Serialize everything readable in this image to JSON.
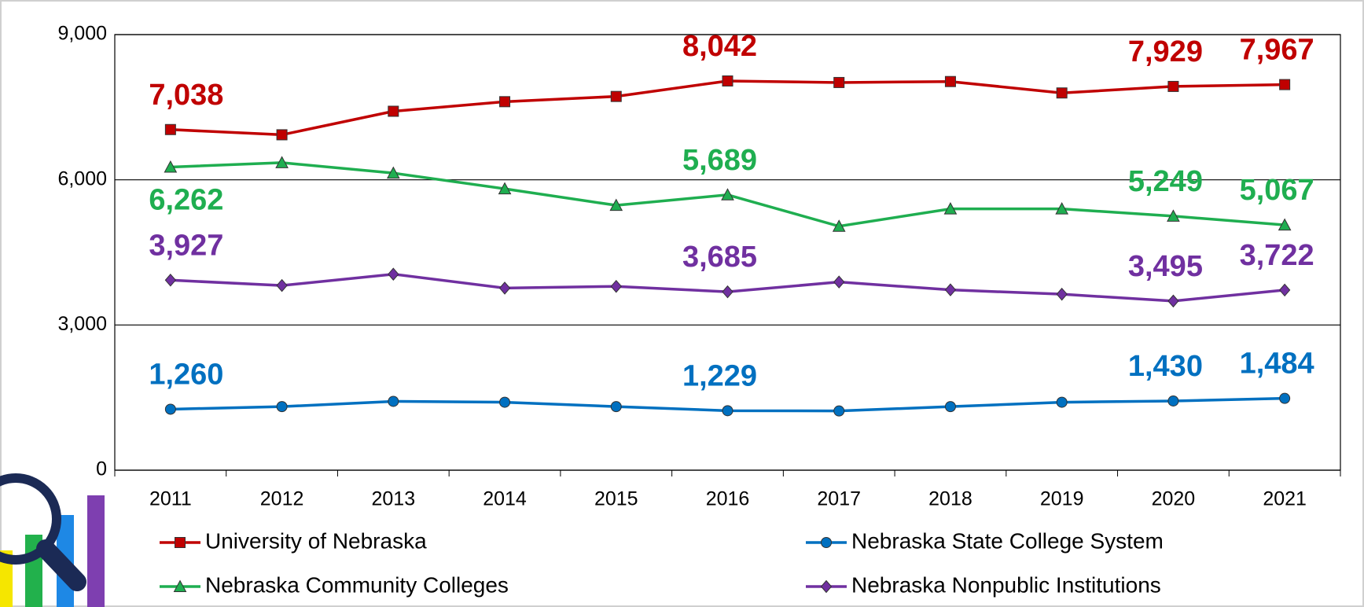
{
  "chart_data": {
    "type": "line",
    "categories": [
      "2011",
      "2012",
      "2013",
      "2014",
      "2015",
      "2016",
      "2017",
      "2018",
      "2019",
      "2020",
      "2021"
    ],
    "series": [
      {
        "name": "University of Nebraska",
        "color": "#c00000",
        "marker": "square",
        "values": [
          7038,
          6930,
          7416,
          7614,
          7722,
          8042,
          8010,
          8030,
          7794,
          7929,
          7967
        ],
        "value_labels": [
          "7,038",
          null,
          null,
          null,
          null,
          "8,042",
          null,
          null,
          null,
          "7,929",
          "7,967"
        ]
      },
      {
        "name": "Nebraska State College System",
        "color": "#0070c0",
        "marker": "circle",
        "values": [
          1260,
          1314,
          1422,
          1404,
          1314,
          1229,
          1224,
          1314,
          1404,
          1430,
          1484
        ],
        "value_labels": [
          "1,260",
          null,
          null,
          null,
          null,
          "1,229",
          null,
          null,
          null,
          "1,430",
          "1,484"
        ]
      },
      {
        "name": "Nebraska Community Colleges",
        "color": "#1fae50",
        "marker": "triangle",
        "values": [
          6262,
          6354,
          6138,
          5814,
          5472,
          5689,
          5040,
          5400,
          5400,
          5249,
          5067
        ],
        "value_labels": [
          "6,262",
          null,
          null,
          null,
          null,
          "5,689",
          null,
          null,
          null,
          "5,249",
          "5,067"
        ]
      },
      {
        "name": "Nebraska Nonpublic Institutions",
        "color": "#7030a0",
        "marker": "diamond",
        "values": [
          3927,
          3816,
          4050,
          3762,
          3798,
          3685,
          3888,
          3726,
          3636,
          3495,
          3722
        ],
        "value_labels": [
          "3,927",
          null,
          null,
          null,
          null,
          "3,685",
          null,
          null,
          null,
          "3,495",
          "3,722"
        ]
      }
    ],
    "ylim": [
      0,
      9000
    ],
    "yticks": [
      {
        "value": 0,
        "label": "0"
      },
      {
        "value": 3000,
        "label": "3,000"
      },
      {
        "value": 6000,
        "label": "6,000"
      },
      {
        "value": 9000,
        "label": "9,000"
      }
    ],
    "grid": true
  }
}
